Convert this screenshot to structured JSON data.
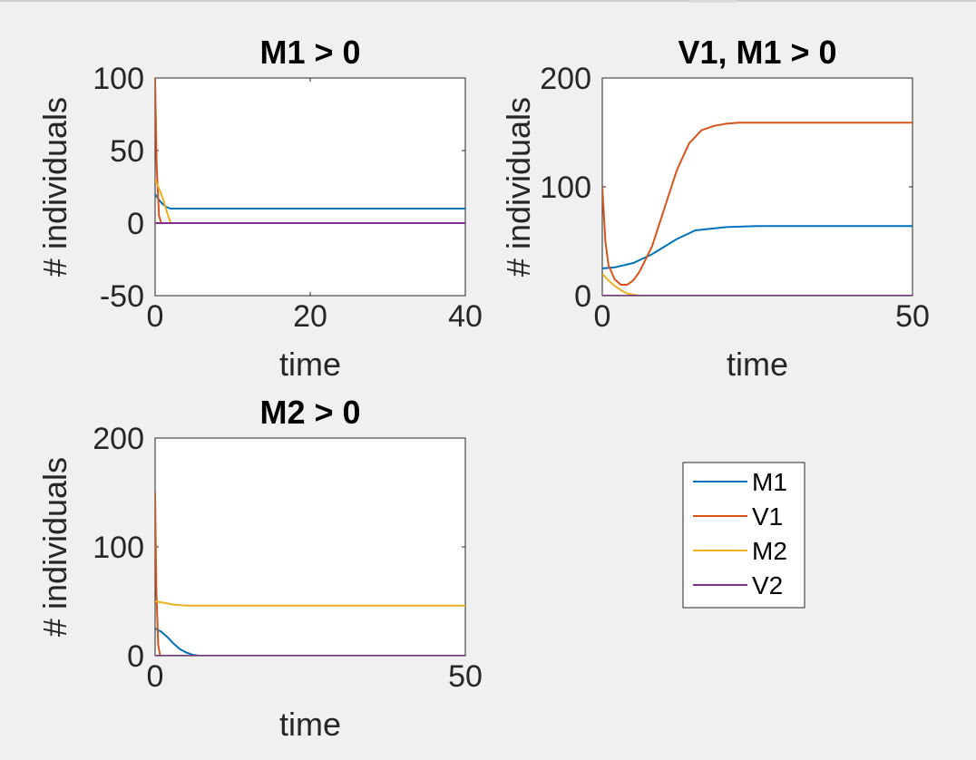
{
  "colors": {
    "M1": "#0072BD",
    "V1": "#D95319",
    "M2": "#EDB120",
    "V2": "#7E2F8E"
  },
  "legend": {
    "entries": [
      "M1",
      "V1",
      "M2",
      "V2"
    ]
  },
  "chart_data": [
    {
      "type": "line",
      "title": "M1 > 0",
      "xlabel": "time",
      "ylabel": "# individuals",
      "xlim": [
        0,
        40
      ],
      "ylim": [
        -50,
        100
      ],
      "xticks": [
        0,
        20,
        40
      ],
      "yticks": [
        -50,
        0,
        50,
        100
      ],
      "series": [
        {
          "name": "M1",
          "x": [
            0,
            0.5,
            1,
            1.5,
            2,
            40
          ],
          "y": [
            20,
            16,
            13,
            11,
            10,
            10
          ]
        },
        {
          "name": "V1",
          "x": [
            0,
            0.2,
            0.5,
            0.8,
            1,
            40
          ],
          "y": [
            100,
            40,
            5,
            0,
            0,
            0
          ]
        },
        {
          "name": "M2",
          "x": [
            0,
            0.5,
            1,
            1.5,
            2,
            40
          ],
          "y": [
            30,
            24,
            17,
            8,
            0,
            0
          ]
        },
        {
          "name": "V2",
          "x": [
            0,
            40
          ],
          "y": [
            0,
            0
          ]
        }
      ]
    },
    {
      "type": "line",
      "title": "V1, M1 > 0",
      "xlabel": "time",
      "ylabel": "# individuals",
      "xlim": [
        0,
        50
      ],
      "ylim": [
        0,
        200
      ],
      "xticks": [
        0,
        50
      ],
      "yticks": [
        0,
        100,
        200
      ],
      "series": [
        {
          "name": "M1",
          "x": [
            0,
            2,
            5,
            8,
            10,
            12,
            15,
            20,
            25,
            50
          ],
          "y": [
            25,
            26,
            30,
            38,
            45,
            52,
            60,
            63,
            64,
            64
          ]
        },
        {
          "name": "V1",
          "x": [
            0,
            0.5,
            1,
            2,
            3,
            4,
            5,
            6,
            8,
            10,
            12,
            14,
            16,
            18,
            20,
            22,
            25,
            30,
            50
          ],
          "y": [
            100,
            50,
            28,
            15,
            10,
            10,
            14,
            22,
            45,
            80,
            115,
            140,
            152,
            156,
            158,
            159,
            159,
            159,
            159
          ]
        },
        {
          "name": "M2",
          "x": [
            0,
            1,
            2,
            3,
            4,
            5,
            6,
            8,
            50
          ],
          "y": [
            20,
            14,
            9,
            5,
            2,
            1,
            0,
            0,
            0
          ]
        },
        {
          "name": "V2",
          "x": [
            0,
            50
          ],
          "y": [
            0,
            0
          ]
        }
      ]
    },
    {
      "type": "line",
      "title": "M2 > 0",
      "xlabel": "time",
      "ylabel": "# individuals",
      "xlim": [
        0,
        50
      ],
      "ylim": [
        0,
        200
      ],
      "xticks": [
        0,
        50
      ],
      "yticks": [
        0,
        100,
        200
      ],
      "series": [
        {
          "name": "M1",
          "x": [
            0,
            1,
            2,
            3,
            4,
            5,
            6,
            7,
            8,
            50
          ],
          "y": [
            25,
            22,
            17,
            11,
            6,
            3,
            1,
            0,
            0,
            0
          ]
        },
        {
          "name": "V1",
          "x": [
            0,
            0.2,
            0.5,
            0.8,
            1,
            50
          ],
          "y": [
            150,
            60,
            10,
            0,
            0,
            0
          ]
        },
        {
          "name": "M2",
          "x": [
            0,
            1,
            2,
            3,
            5,
            8,
            50
          ],
          "y": [
            50,
            49,
            48,
            47,
            46,
            46,
            46
          ]
        },
        {
          "name": "V2",
          "x": [
            0,
            50
          ],
          "y": [
            0,
            0
          ]
        }
      ]
    }
  ]
}
